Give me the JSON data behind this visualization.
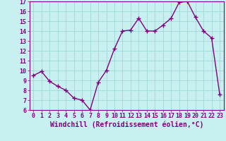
{
  "x": [
    0,
    1,
    2,
    3,
    4,
    5,
    6,
    7,
    8,
    9,
    10,
    11,
    12,
    13,
    14,
    15,
    16,
    17,
    18,
    19,
    20,
    21,
    22,
    23
  ],
  "y": [
    9.5,
    9.9,
    8.9,
    8.4,
    8.0,
    7.2,
    7.0,
    6.0,
    8.8,
    10.0,
    12.2,
    14.0,
    14.1,
    15.3,
    14.0,
    14.0,
    14.6,
    15.3,
    16.9,
    17.0,
    15.4,
    14.0,
    13.3,
    7.6
  ],
  "line_color": "#800080",
  "marker": "+",
  "marker_size": 4,
  "marker_lw": 1.0,
  "bg_color": "#c8f0f0",
  "grid_color": "#a0d8d8",
  "xlabel": "Windchill (Refroidissement éolien,°C)",
  "ylim": [
    6,
    17
  ],
  "xlim": [
    -0.5,
    23.5
  ],
  "yticks": [
    6,
    7,
    8,
    9,
    10,
    11,
    12,
    13,
    14,
    15,
    16,
    17
  ],
  "xticks": [
    0,
    1,
    2,
    3,
    4,
    5,
    6,
    7,
    8,
    9,
    10,
    11,
    12,
    13,
    14,
    15,
    16,
    17,
    18,
    19,
    20,
    21,
    22,
    23
  ],
  "tick_color": "#800080",
  "xlabel_fontsize": 7,
  "tick_fontsize": 6,
  "linewidth": 1.0
}
